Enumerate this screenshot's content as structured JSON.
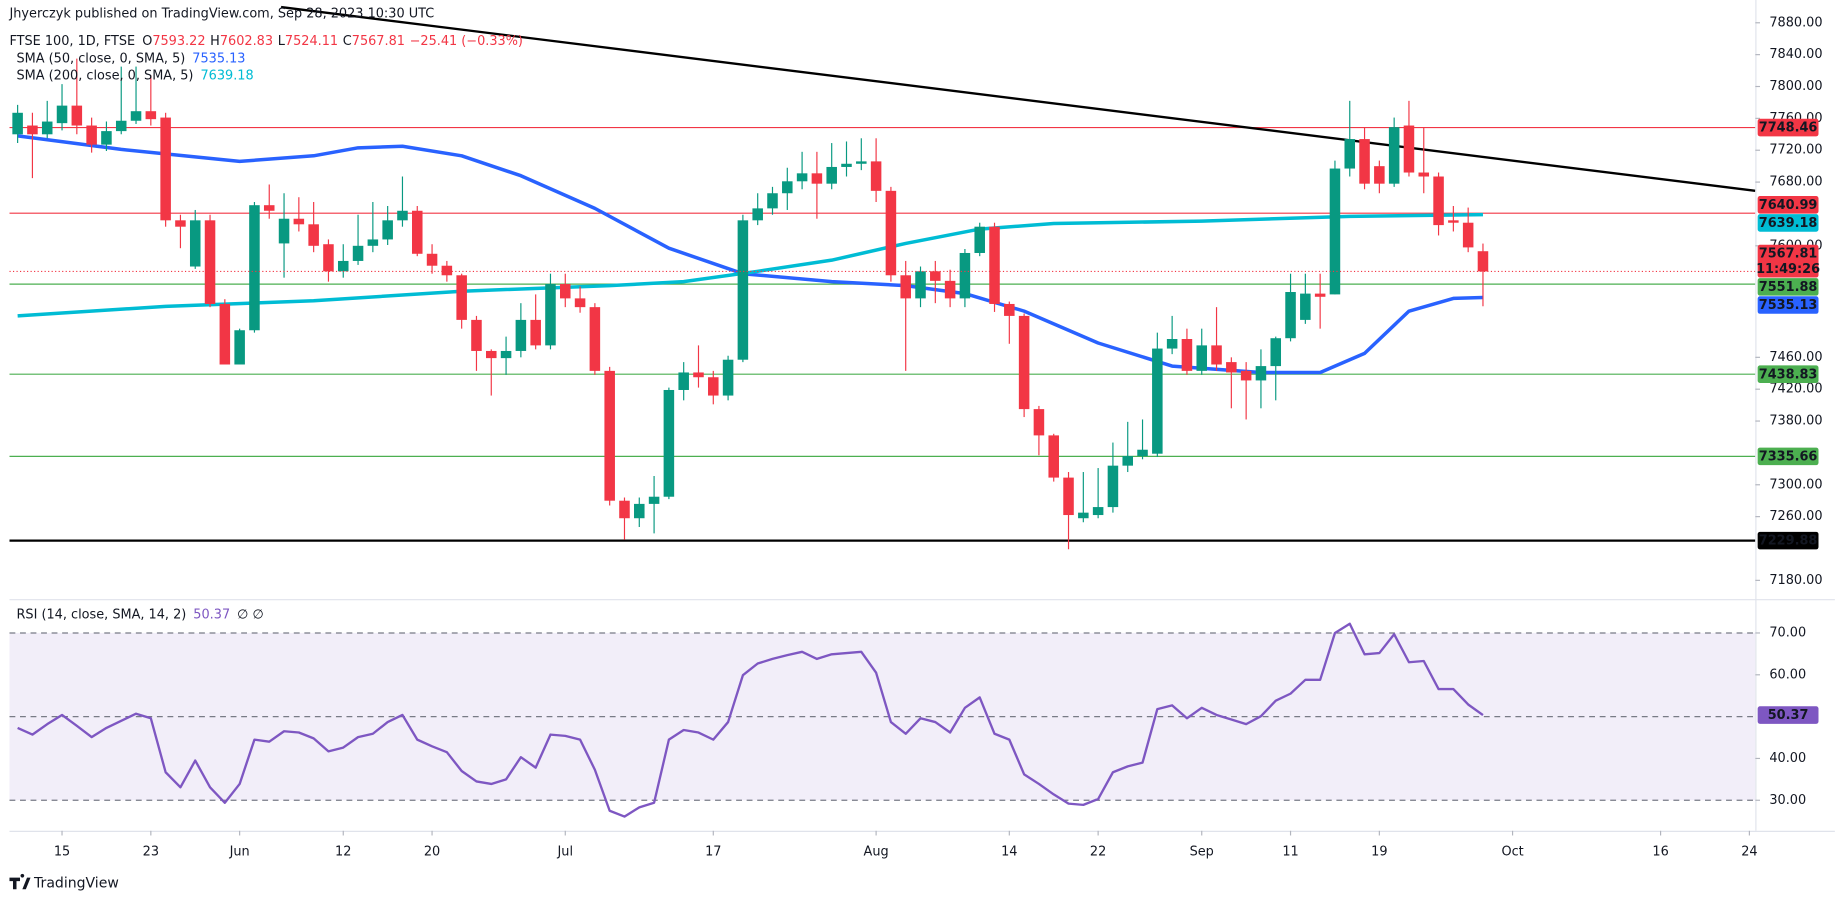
{
  "header": {
    "author_line": "Jhyerczyk published on TradingView.com, Sep 28, 2023 10:30 UTC",
    "brand": "TradingView"
  },
  "chart_data": [
    {
      "type": "candlestick",
      "title": "FTSE 100, 1D, FTSE",
      "ohlc_prefixes": [
        "O",
        "H",
        "L",
        "C"
      ],
      "change_label": "−25.41 (−0.33%)",
      "up_color": "#089981",
      "down_color": "#f23645",
      "open": [
        7740,
        7751,
        7740,
        7754,
        7776,
        7751,
        7727,
        7744,
        7757,
        7769,
        7761,
        7632,
        7574,
        7632,
        7527,
        7451,
        7494,
        7651,
        7603,
        7634,
        7627,
        7602,
        7568,
        7581,
        7600,
        7608,
        7632,
        7644,
        7590,
        7575,
        7563,
        7507,
        7468,
        7459,
        7468,
        7507,
        7475,
        7552,
        7534,
        7523,
        7443,
        7280,
        7258,
        7276,
        7285,
        7419,
        7441,
        7435,
        7412,
        7457,
        7632,
        7647,
        7666,
        7681,
        7691,
        7678,
        7699,
        7703,
        7706,
        7669,
        7563,
        7534,
        7568,
        7556,
        7534,
        7591,
        7624,
        7527,
        7512,
        7395,
        7362,
        7309,
        7258,
        7262,
        7272,
        7324,
        7336,
        7339,
        7471,
        7483,
        7443,
        7475,
        7454,
        7443,
        7431,
        7449,
        7484,
        7507,
        7540,
        7539,
        7697,
        7734,
        7700,
        7678,
        7751,
        7692,
        7687,
        7632,
        7629,
        7593.22
      ],
      "high": [
        7777,
        7767,
        7782,
        7803,
        7835,
        7761,
        7756,
        7825,
        7825,
        7814,
        7767,
        7639,
        7645,
        7639,
        7533,
        7496,
        7655,
        7677,
        7666,
        7661,
        7655,
        7608,
        7602,
        7639,
        7655,
        7650,
        7687,
        7650,
        7602,
        7581,
        7565,
        7512,
        7470,
        7486,
        7528,
        7539,
        7565,
        7565,
        7549,
        7528,
        7448,
        7284,
        7284,
        7311,
        7422,
        7454,
        7475,
        7443,
        7462,
        7639,
        7666,
        7674,
        7698,
        7718,
        7718,
        7729,
        7731,
        7735,
        7735,
        7674,
        7581,
        7574,
        7581,
        7570,
        7596,
        7629,
        7629,
        7530,
        7515,
        7399,
        7364,
        7316,
        7316,
        7321,
        7353,
        7379,
        7382,
        7491,
        7512,
        7496,
        7496,
        7523,
        7460,
        7454,
        7470,
        7486,
        7565,
        7565,
        7565,
        7707,
        7782,
        7749,
        7707,
        7761,
        7782,
        7749,
        7692,
        7650,
        7648,
        7602.83
      ],
      "low": [
        7729,
        7685,
        7735,
        7745,
        7740,
        7717,
        7719,
        7740,
        7753,
        7751,
        7624,
        7597,
        7571,
        7523,
        7451,
        7451,
        7491,
        7634,
        7560,
        7618,
        7592,
        7555,
        7560,
        7576,
        7592,
        7601,
        7624,
        7587,
        7565,
        7555,
        7496,
        7443,
        7412,
        7438,
        7460,
        7470,
        7470,
        7523,
        7516,
        7438,
        7274,
        7231,
        7247,
        7239,
        7282,
        7406,
        7422,
        7401,
        7406,
        7454,
        7626,
        7639,
        7645,
        7671,
        7634,
        7671,
        7687,
        7695,
        7655,
        7555,
        7443,
        7523,
        7528,
        7523,
        7523,
        7587,
        7517,
        7477,
        7385,
        7337,
        7304,
        7219,
        7253,
        7258,
        7265,
        7316,
        7332,
        7335,
        7464,
        7438,
        7438,
        7443,
        7396,
        7382,
        7396,
        7406,
        7480,
        7502,
        7496,
        7539,
        7687,
        7671,
        7666,
        7674,
        7687,
        7666,
        7613,
        7618,
        7592,
        7524.11
      ],
      "close": [
        7767,
        7740,
        7756,
        7776,
        7751,
        7727,
        7744,
        7757,
        7769,
        7759,
        7632,
        7624,
        7632,
        7527,
        7451,
        7494,
        7651,
        7644,
        7634,
        7627,
        7600,
        7568,
        7581,
        7600,
        7608,
        7632,
        7644,
        7590,
        7575,
        7563,
        7507,
        7468,
        7459,
        7468,
        7507,
        7475,
        7552,
        7534,
        7523,
        7443,
        7280,
        7258,
        7276,
        7285,
        7419,
        7441,
        7435,
        7412,
        7457,
        7632,
        7647,
        7666,
        7681,
        7691,
        7678,
        7699,
        7703,
        7706,
        7669,
        7563,
        7534,
        7568,
        7556,
        7534,
        7591,
        7624,
        7527,
        7512,
        7395,
        7362,
        7309,
        7262,
        7265,
        7272,
        7324,
        7336,
        7344,
        7471,
        7483,
        7443,
        7475,
        7451,
        7441,
        7431,
        7449,
        7484,
        7542,
        7540,
        7536,
        7697,
        7734,
        7678,
        7678,
        7749,
        7692,
        7687,
        7626,
        7629,
        7598,
        7567.81
      ],
      "countdown": "11:49:26",
      "xlim": [
        -0.55,
        117.4
      ],
      "ylim": [
        7159.4,
        7908.6
      ],
      "yticks": [
        {
          "value": 7180,
          "label": "7180.00"
        },
        {
          "value": 7260,
          "label": "7260.00"
        },
        {
          "value": 7300,
          "label": "7300.00"
        },
        {
          "value": 7380,
          "label": "7380.00"
        },
        {
          "value": 7420,
          "label": "7420.00"
        },
        {
          "value": 7460,
          "label": "7460.00"
        },
        {
          "value": 7600,
          "label": "7600.00"
        },
        {
          "value": 7680,
          "label": "7680.00"
        },
        {
          "value": 7720,
          "label": "7720.00"
        },
        {
          "value": 7760,
          "label": "7760.00"
        },
        {
          "value": 7800,
          "label": "7800.00"
        },
        {
          "value": 7840,
          "label": "7840.00"
        },
        {
          "value": 7880,
          "label": "7880.00"
        }
      ],
      "series": [
        {
          "name": "SMA (50, close, 0, SMA, 5)",
          "color": "#2962ff",
          "x": [
            0,
            7,
            15,
            20,
            23,
            26,
            30,
            34,
            39,
            44,
            49,
            55,
            60,
            64,
            68,
            73,
            78,
            84,
            88,
            91,
            94,
            97,
            99
          ],
          "values": [
            7738,
            7721,
            7706,
            7713,
            7723,
            7725,
            7713,
            7688,
            7647,
            7597,
            7565,
            7555,
            7550,
            7540,
            7518,
            7478,
            7449,
            7441,
            7441,
            7465,
            7518,
            7534,
            7535.13
          ]
        },
        {
          "name": "SMA (200, close, 0, SMA, 5)",
          "color": "#00bcd4",
          "x": [
            0,
            10,
            20,
            30,
            40,
            45,
            50,
            55,
            60,
            65,
            70,
            80,
            90,
            99
          ],
          "values": [
            7512,
            7524,
            7531,
            7543,
            7550,
            7555,
            7568,
            7582,
            7603,
            7621,
            7628,
            7631,
            7637,
            7639.18
          ]
        }
      ],
      "levels": [
        {
          "value": 7748.46,
          "color": "#f23645"
        },
        {
          "value": 7640.99,
          "color": "#f23645"
        },
        {
          "value": 7551.88,
          "color": "#4caf50"
        },
        {
          "value": 7438.83,
          "color": "#4caf50"
        },
        {
          "value": 7335.66,
          "color": "#4caf50"
        },
        {
          "value": 7229.88,
          "color": "#000000"
        }
      ],
      "trendline": {
        "x": [
          17.8,
          117.4
        ],
        "values": [
          7899.7,
          7669
        ],
        "color": "#000000"
      }
    },
    {
      "type": "line",
      "title": "RSI (14, close, SMA, 14, 2)",
      "title_suffix": "∅ ∅",
      "xlim": [
        -0.55,
        117.4
      ],
      "xticks": [
        {
          "value": 3,
          "label": "15"
        },
        {
          "value": 9,
          "label": "23"
        },
        {
          "value": 15,
          "label": "Jun"
        },
        {
          "value": 22,
          "label": "12"
        },
        {
          "value": 28,
          "label": "20"
        },
        {
          "value": 37,
          "label": "Jul"
        },
        {
          "value": 47,
          "label": "17"
        },
        {
          "value": 58,
          "label": "Aug"
        },
        {
          "value": 67,
          "label": "14"
        },
        {
          "value": 73,
          "label": "22"
        },
        {
          "value": 80,
          "label": "Sep"
        },
        {
          "value": 86,
          "label": "11"
        },
        {
          "value": 92,
          "label": "19"
        },
        {
          "value": 101,
          "label": "Oct"
        },
        {
          "value": 111,
          "label": "16"
        },
        {
          "value": 117,
          "label": "24"
        }
      ],
      "ylim": [
        24.1,
        76.7
      ],
      "yticks": [
        {
          "value": 30,
          "label": "30.00"
        },
        {
          "value": 40,
          "label": "40.00"
        },
        {
          "value": 60,
          "label": "60.00"
        },
        {
          "value": 70,
          "label": "70.00"
        }
      ],
      "bands": [
        70,
        50,
        30
      ],
      "band_color": "#7e57c2",
      "series": [
        {
          "color": "#7e57c2",
          "values": [
            47.3,
            45.7,
            48.2,
            50.4,
            47.8,
            45.1,
            47.3,
            49.0,
            50.7,
            49.6,
            36.7,
            33.1,
            39.5,
            33.1,
            29.4,
            33.9,
            44.5,
            44.0,
            46.5,
            46.2,
            44.8,
            41.7,
            42.6,
            45.1,
            45.9,
            48.7,
            50.4,
            44.5,
            42.9,
            41.5,
            37.0,
            34.5,
            33.9,
            35.0,
            40.3,
            37.8,
            45.7,
            45.4,
            44.5,
            37.3,
            27.5,
            26.1,
            28.3,
            29.4,
            44.5,
            46.8,
            46.2,
            44.5,
            48.7,
            59.9,
            62.7,
            63.8,
            64.7,
            65.5,
            63.8,
            64.9,
            65.2,
            65.5,
            60.5,
            48.7,
            45.9,
            49.6,
            48.7,
            46.2,
            52.1,
            54.6,
            45.9,
            44.5,
            36.2,
            33.9,
            31.4,
            29.2,
            28.9,
            30.3,
            36.7,
            38.1,
            39.0,
            51.8,
            52.7,
            49.6,
            52.1,
            50.4,
            49.3,
            48.2,
            50.1,
            53.8,
            55.5,
            58.8,
            58.8,
            70.0,
            72.2,
            64.9,
            65.2,
            69.7,
            63.0,
            63.3,
            56.6,
            56.6,
            52.9,
            50.37
          ]
        }
      ]
    }
  ]
}
